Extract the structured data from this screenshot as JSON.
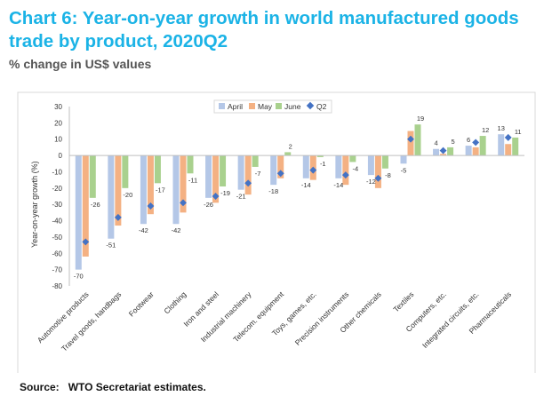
{
  "title": "Chart 6: Year-on-year growth in world manufactured goods trade by product, 2020Q2",
  "subtitle": "% change in US$ values",
  "source": {
    "label": "Source:",
    "text": "WTO Secretariat estimates."
  },
  "colors": {
    "April": "#b4c7e7",
    "May": "#f4b183",
    "June": "#a9d18e",
    "Q2": "#4472c4",
    "title": "#1bb3e6"
  },
  "chart_data": {
    "type": "bar",
    "ylabel": "Year-on-year growth (%)",
    "ylim": [
      -80,
      30
    ],
    "yticks": [
      30,
      20,
      10,
      0,
      -10,
      -20,
      -30,
      -40,
      -50,
      -60,
      -70,
      -80
    ],
    "legend_position": "top-center",
    "grid": false,
    "categories": [
      "Automotive products",
      "Travel goods, handbags",
      "Footwear",
      "Clothing",
      "Iron and steel",
      "Industrial machinery",
      "Telecom. equipment",
      "Toys, games, etc.",
      "Precision instruments",
      "Other chemicals",
      "Textiles",
      "Computers, etc.",
      "Integrated circuits, etc.",
      "Pharmaceuticals"
    ],
    "series": [
      {
        "name": "April",
        "values": [
          -70,
          -51,
          -42,
          -42,
          -26,
          -21,
          -18,
          -14,
          -14,
          -12,
          -5,
          4,
          6,
          13
        ]
      },
      {
        "name": "May",
        "values": [
          -62,
          -43,
          -36,
          -35,
          -29,
          -24,
          -14,
          -15,
          -18,
          -20,
          15,
          1,
          5,
          7
        ]
      },
      {
        "name": "June",
        "values": [
          -26,
          -20,
          -17,
          -11,
          -19,
          -7,
          2,
          -1,
          -4,
          -8,
          19,
          5,
          12,
          11
        ]
      },
      {
        "name": "Q2",
        "type": "marker",
        "values": [
          -53,
          -38,
          -31,
          -29,
          -25,
          -17,
          -11,
          -9,
          -12,
          -14,
          10,
          3,
          8,
          11
        ]
      }
    ],
    "data_labels": [
      {
        "category": "Automotive products",
        "texts": [
          "-70",
          "-26"
        ]
      },
      {
        "category": "Travel goods, handbags",
        "texts": [
          "-51",
          "-20"
        ]
      },
      {
        "category": "Footwear",
        "texts": [
          "-42",
          "-17"
        ]
      },
      {
        "category": "Clothing",
        "texts": [
          "-42",
          "-11"
        ]
      },
      {
        "category": "Iron and steel",
        "texts": [
          "-26",
          "-19"
        ]
      },
      {
        "category": "Industrial machinery",
        "texts": [
          "-21",
          "-7"
        ]
      },
      {
        "category": "Telecom. equipment",
        "texts": [
          "-18",
          "2"
        ]
      },
      {
        "category": "Toys, games, etc.",
        "texts": [
          "-14",
          "-1"
        ]
      },
      {
        "category": "Precision instruments",
        "texts": [
          "-14",
          "-4"
        ]
      },
      {
        "category": "Other chemicals",
        "texts": [
          "-12",
          "-8"
        ]
      },
      {
        "category": "Textiles",
        "texts": [
          "-5",
          "19"
        ]
      },
      {
        "category": "Computers, etc.",
        "texts": [
          "4",
          "5"
        ]
      },
      {
        "category": "Integrated circuits, etc.",
        "texts": [
          "6",
          "12"
        ]
      },
      {
        "category": "Pharmaceuticals",
        "texts": [
          "13",
          "11"
        ]
      }
    ]
  }
}
